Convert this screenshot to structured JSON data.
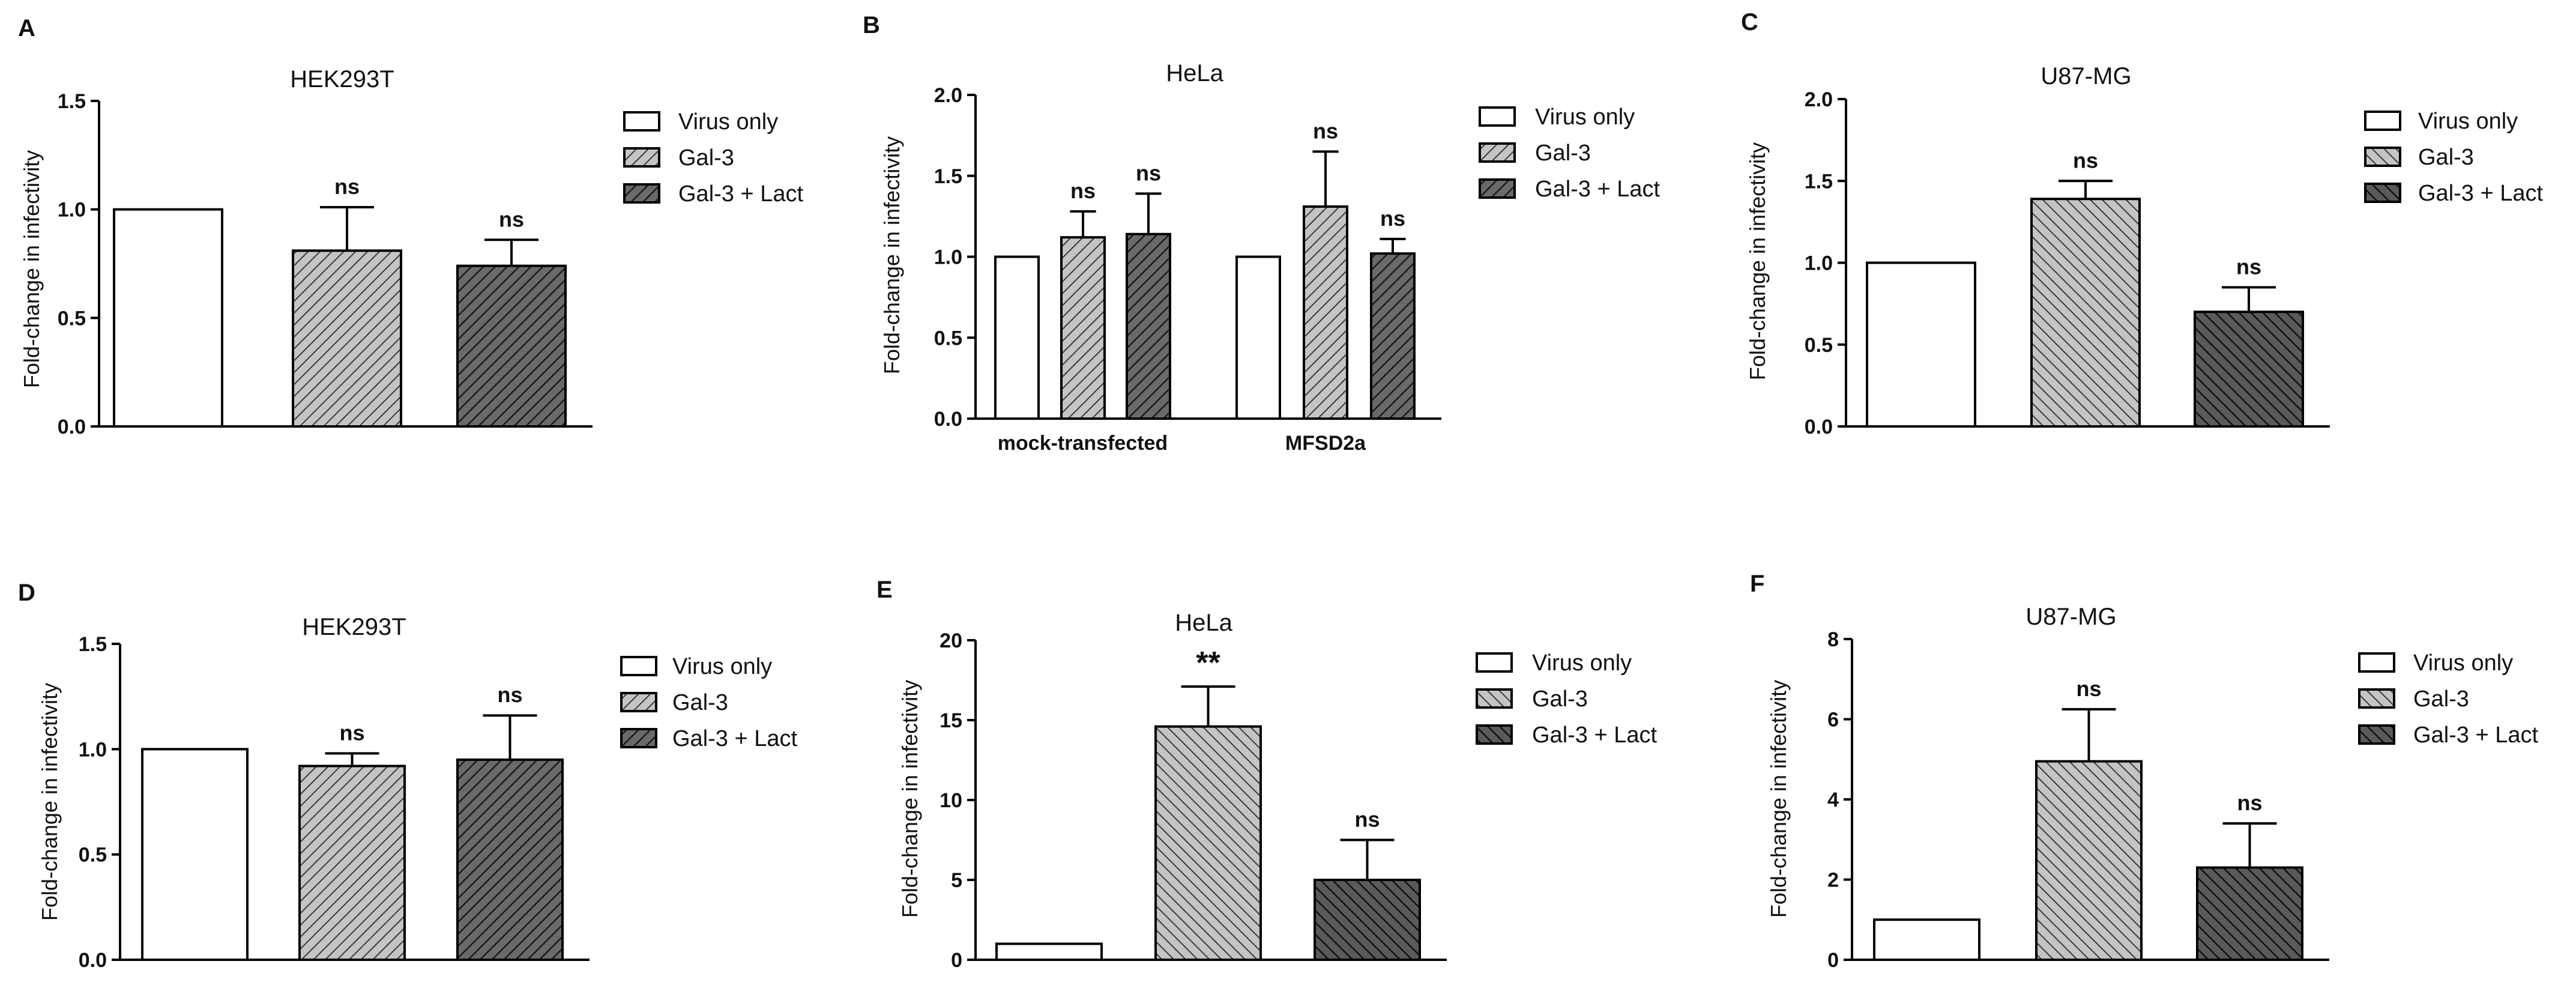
{
  "figure": {
    "panel_count": 6
  },
  "chart_data": [
    {
      "panel": "A",
      "type": "bar",
      "title": "HEK293T",
      "xlabel": "",
      "ylabel": "Fold-change in infectivity",
      "ylim": [
        0,
        1.5
      ],
      "yticks": [
        0.0,
        0.5,
        1.0,
        1.5
      ],
      "ytick_labels": [
        "0.0",
        "0.5",
        "1.0",
        "1.5"
      ],
      "legend_position": "right",
      "categories": [
        ""
      ],
      "series": [
        {
          "name": "Virus only",
          "fill": "#ffffff",
          "values": [
            1.0
          ],
          "errors": [
            0
          ],
          "annotations": [
            ""
          ]
        },
        {
          "name": "Gal-3",
          "fill": "#b0b0b0",
          "values": [
            0.81
          ],
          "errors": [
            0.2
          ],
          "annotations": [
            "ns"
          ]
        },
        {
          "name": "Gal-3 + Lact",
          "fill": "#555555",
          "values": [
            0.74
          ],
          "errors": [
            0.12
          ],
          "annotations": [
            "ns"
          ]
        }
      ]
    },
    {
      "panel": "B",
      "type": "bar",
      "title": "HeLa",
      "xlabel": "",
      "ylabel": "Fold-change in infectivity",
      "ylim": [
        0,
        2.0
      ],
      "yticks": [
        0.0,
        0.5,
        1.0,
        1.5,
        2.0
      ],
      "ytick_labels": [
        "0.0",
        "0.5",
        "1.0",
        "1.5",
        "2.0"
      ],
      "legend_position": "right",
      "categories": [
        "mock-transfected",
        "MFSD2a"
      ],
      "series": [
        {
          "name": "Virus only",
          "fill": "#ffffff",
          "values": [
            1.0,
            1.0
          ],
          "errors": [
            0,
            0
          ],
          "annotations": [
            "",
            ""
          ]
        },
        {
          "name": "Gal-3",
          "fill": "#b0b0b0",
          "values": [
            1.12,
            1.31
          ],
          "errors": [
            0.16,
            0.34
          ],
          "annotations": [
            "ns",
            "ns"
          ]
        },
        {
          "name": "Gal-3 + Lact",
          "fill": "#555555",
          "values": [
            1.14,
            1.02
          ],
          "errors": [
            0.25,
            0.09
          ],
          "annotations": [
            "ns",
            "ns"
          ]
        }
      ]
    },
    {
      "panel": "C",
      "type": "bar",
      "title": "U87-MG",
      "xlabel": "",
      "ylabel": "Fold-change in infectivity",
      "ylim": [
        0,
        2.0
      ],
      "yticks": [
        0.0,
        0.5,
        1.0,
        1.5,
        2.0
      ],
      "ytick_labels": [
        "0.0",
        "0.5",
        "1.0",
        "1.5",
        "2.0"
      ],
      "legend_position": "right",
      "categories": [
        ""
      ],
      "series": [
        {
          "name": "Virus only",
          "fill": "#ffffff",
          "values": [
            1.0
          ],
          "errors": [
            0
          ],
          "annotations": [
            ""
          ]
        },
        {
          "name": "Gal-3",
          "fill": "#b0b0b0",
          "values": [
            1.39
          ],
          "errors": [
            0.11
          ],
          "annotations": [
            "ns"
          ]
        },
        {
          "name": "Gal-3 + Lact",
          "fill": "#555555",
          "values": [
            0.7
          ],
          "errors": [
            0.15
          ],
          "annotations": [
            "ns"
          ]
        }
      ]
    },
    {
      "panel": "D",
      "type": "bar",
      "title": "HEK293T",
      "xlabel": "",
      "ylabel": "Fold-change in infectivity",
      "ylim": [
        0,
        1.5
      ],
      "yticks": [
        0.0,
        0.5,
        1.0,
        1.5
      ],
      "ytick_labels": [
        "0.0",
        "0.5",
        "1.0",
        "1.5"
      ],
      "legend_position": "right",
      "categories": [
        ""
      ],
      "series": [
        {
          "name": "Virus only",
          "fill": "#ffffff",
          "values": [
            1.0
          ],
          "errors": [
            0
          ],
          "annotations": [
            ""
          ]
        },
        {
          "name": "Gal-3",
          "fill": "#b0b0b0",
          "values": [
            0.92
          ],
          "errors": [
            0.06
          ],
          "annotations": [
            "ns"
          ]
        },
        {
          "name": "Gal-3 + Lact",
          "fill": "#555555",
          "values": [
            0.95
          ],
          "errors": [
            0.21
          ],
          "annotations": [
            "ns"
          ]
        }
      ]
    },
    {
      "panel": "E",
      "type": "bar",
      "title": "HeLa",
      "xlabel": "",
      "ylabel": "Fold-change in infectivity",
      "ylim": [
        0,
        20
      ],
      "yticks": [
        0,
        5,
        10,
        15,
        20
      ],
      "ytick_labels": [
        "0",
        "5",
        "10",
        "15",
        "20"
      ],
      "legend_position": "right",
      "categories": [
        ""
      ],
      "series": [
        {
          "name": "Virus only",
          "fill": "#ffffff",
          "values": [
            1.0
          ],
          "errors": [
            0
          ],
          "annotations": [
            ""
          ]
        },
        {
          "name": "Gal-3",
          "fill": "#b0b0b0",
          "values": [
            14.6
          ],
          "errors": [
            2.5
          ],
          "annotations": [
            "**"
          ]
        },
        {
          "name": "Gal-3 + Lact",
          "fill": "#333333",
          "values": [
            5.0
          ],
          "errors": [
            2.5
          ],
          "annotations": [
            "ns"
          ]
        }
      ]
    },
    {
      "panel": "F",
      "type": "bar",
      "title": "U87-MG",
      "xlabel": "",
      "ylabel": "Fold-change in infectivity",
      "ylim": [
        0,
        8
      ],
      "yticks": [
        0,
        2,
        4,
        6,
        8
      ],
      "ytick_labels": [
        "0",
        "2",
        "4",
        "6",
        "8"
      ],
      "legend_position": "right",
      "categories": [
        ""
      ],
      "series": [
        {
          "name": "Virus only",
          "fill": "#ffffff",
          "values": [
            1.0
          ],
          "errors": [
            0
          ],
          "annotations": [
            ""
          ]
        },
        {
          "name": "Gal-3",
          "fill": "#b0b0b0",
          "values": [
            4.95
          ],
          "errors": [
            1.3
          ],
          "annotations": [
            "ns"
          ]
        },
        {
          "name": "Gal-3 + Lact",
          "fill": "#555555",
          "values": [
            2.3
          ],
          "errors": [
            1.1
          ],
          "annotations": [
            "ns"
          ]
        }
      ]
    }
  ]
}
